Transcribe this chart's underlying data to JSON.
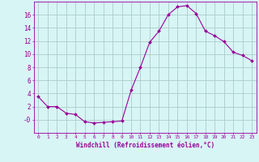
{
  "x": [
    0,
    1,
    2,
    3,
    4,
    5,
    6,
    7,
    8,
    9,
    10,
    11,
    12,
    13,
    14,
    15,
    16,
    17,
    18,
    19,
    20,
    21,
    22,
    23
  ],
  "y": [
    3.5,
    2.0,
    2.0,
    1.0,
    0.8,
    -0.3,
    -0.5,
    -0.4,
    -0.3,
    -0.2,
    4.5,
    8.0,
    11.8,
    13.5,
    16.0,
    17.2,
    17.4,
    16.2,
    13.5,
    12.8,
    11.9,
    10.3,
    9.8,
    9.0
  ],
  "line_color": "#990099",
  "marker": "D",
  "marker_size": 2.0,
  "bg_color": "#d8f5f5",
  "grid_color": "#aacccc",
  "xlabel": "Windchill (Refroidissement éolien,°C)",
  "ylim": [
    -2,
    18
  ],
  "xlim": [
    -0.5,
    23.5
  ],
  "yticks": [
    0,
    2,
    4,
    6,
    8,
    10,
    12,
    14,
    16
  ],
  "ytick_labels": [
    "-0",
    "2",
    "4",
    "6",
    "8",
    "10",
    "12",
    "14",
    "16"
  ],
  "xticks": [
    0,
    1,
    2,
    3,
    4,
    5,
    6,
    7,
    8,
    9,
    10,
    11,
    12,
    13,
    14,
    15,
    16,
    17,
    18,
    19,
    20,
    21,
    22,
    23
  ],
  "color": "#990099"
}
